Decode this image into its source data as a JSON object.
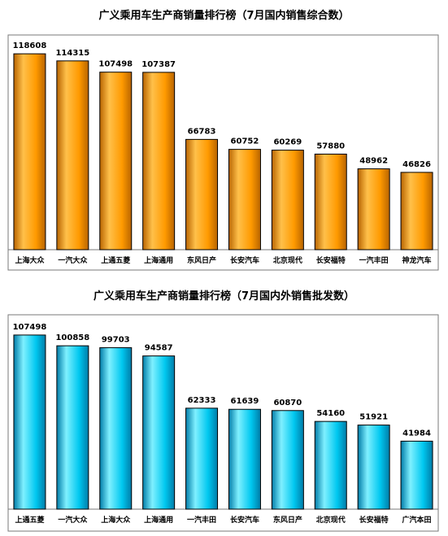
{
  "chart_data": [
    {
      "type": "bar",
      "title": "广义乘用车生产商销量排行榜（7月国内销售综合数）",
      "categories": [
        "上海大众",
        "一汽大众",
        "上通五菱",
        "上海通用",
        "东风日产",
        "长安汽车",
        "北京现代",
        "长安福特",
        "一汽丰田",
        "神龙汽车"
      ],
      "values": [
        118608,
        114315,
        107498,
        107387,
        66783,
        60752,
        60269,
        57880,
        48962,
        46826
      ],
      "ylim": [
        0,
        130000
      ],
      "grid": false,
      "legend": "none",
      "colors": {
        "bar_light": "#ffc04a",
        "bar_mid": "#ff9a00",
        "bar_dark": "#b86400",
        "border": "#000000"
      }
    },
    {
      "type": "bar",
      "title": "广义乘用车生产商销量排行榜（7月国内外销售批发数）",
      "categories": [
        "上通五菱",
        "一汽大众",
        "上海大众",
        "上海通用",
        "一汽丰田",
        "长安汽车",
        "东风日产",
        "北京现代",
        "长安福特",
        "广汽本田"
      ],
      "values": [
        107498,
        100858,
        99703,
        94587,
        62333,
        61639,
        60870,
        54160,
        51921,
        41984
      ],
      "ylim": [
        0,
        120000
      ],
      "grid": false,
      "legend": "none",
      "colors": {
        "bar_light": "#7ff0ff",
        "bar_mid": "#00c8f0",
        "bar_dark": "#007ca8",
        "border": "#000000"
      }
    }
  ]
}
